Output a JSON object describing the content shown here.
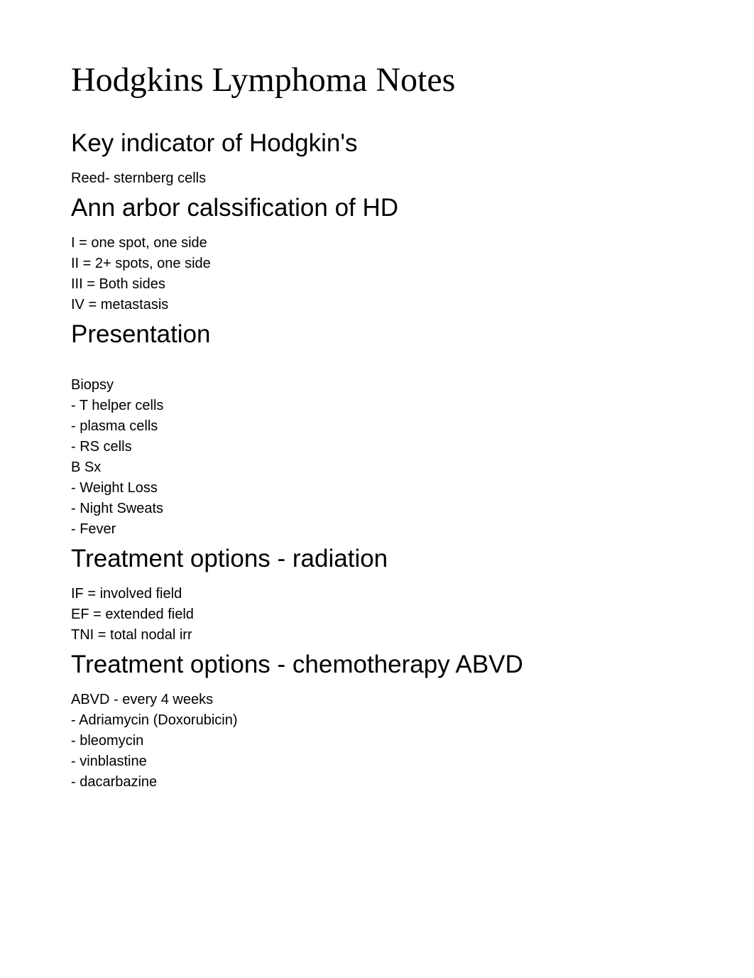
{
  "title": "Hodgkins Lymphoma Notes",
  "sections": {
    "key_indicator": {
      "heading": "Key indicator of Hodgkin's",
      "lines": [
        "Reed- sternberg cells"
      ]
    },
    "ann_arbor": {
      "heading": "Ann arbor calssification of HD",
      "lines": [
        "I = one spot, one side",
        "II = 2+ spots, one side",
        "III = Both sides",
        "IV = metastasis"
      ]
    },
    "presentation": {
      "heading": "Presentation",
      "lines": [
        "Biopsy",
        "- T helper cells",
        "- plasma cells",
        "- RS cells",
        "B Sx",
        "- Weight Loss",
        "- Night Sweats",
        "- Fever"
      ]
    },
    "radiation": {
      "heading": "Treatment options - radiation",
      "lines": [
        "IF = involved field",
        "EF = extended field",
        "TNI = total nodal irr"
      ]
    },
    "chemo": {
      "heading": "Treatment options - chemotherapy ABVD",
      "lines": [
        "ABVD - every 4 weeks",
        "- Adriamycin (Doxorubicin)",
        "- bleomycin",
        "- vinblastine",
        "- dacarbazine"
      ]
    }
  }
}
